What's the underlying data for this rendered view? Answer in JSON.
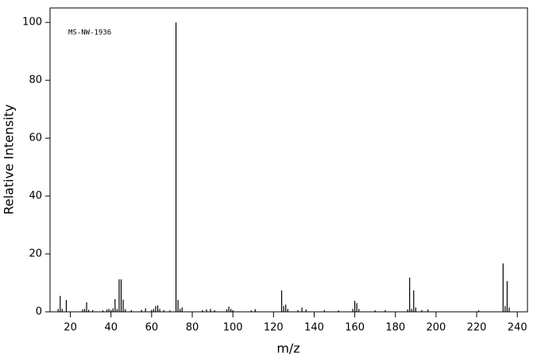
{
  "chart_data": {
    "type": "stem",
    "annotation": "MS-NW-1936",
    "x_label": "m/z",
    "y_label": "Relative Intensity",
    "color": "#000000",
    "x": [
      14,
      15,
      16,
      18,
      26,
      27,
      28,
      29,
      31,
      36,
      38,
      39,
      40,
      41,
      42,
      43,
      44,
      45,
      46,
      47,
      50,
      55,
      57,
      60,
      61,
      62,
      63,
      64,
      66,
      69,
      72,
      73,
      74,
      75,
      85,
      87,
      89,
      91,
      97,
      98,
      99,
      100,
      109,
      111,
      124,
      125,
      126,
      127,
      132,
      134,
      136,
      145,
      152,
      159,
      160,
      161,
      162,
      170,
      175,
      186,
      187,
      188,
      189,
      190,
      193,
      196,
      221,
      233,
      234,
      235,
      236
    ],
    "values": [
      1.0,
      5.5,
      1.0,
      4.1,
      0.8,
      1.0,
      3.3,
      0.7,
      0.6,
      0.5,
      0.8,
      1.0,
      0.6,
      1.2,
      4.4,
      1.0,
      11.2,
      11.2,
      4.2,
      0.9,
      0.6,
      0.7,
      1.2,
      0.7,
      1.0,
      2.0,
      2.2,
      1.0,
      0.6,
      0.5,
      100,
      4.1,
      1.0,
      1.5,
      0.6,
      0.8,
      1.0,
      0.6,
      0.9,
      1.8,
      1.0,
      0.6,
      0.5,
      0.9,
      7.4,
      2.0,
      2.5,
      1.0,
      0.6,
      1.5,
      0.8,
      0.6,
      0.5,
      1.0,
      3.8,
      3.0,
      1.0,
      0.5,
      0.6,
      0.8,
      11.8,
      1.0,
      7.4,
      1.5,
      0.6,
      0.8,
      0.5,
      16.7,
      2.0,
      10.6,
      1.5
    ],
    "xlim": [
      10,
      245
    ],
    "ylim": [
      0,
      105
    ],
    "xticks": [
      20,
      40,
      60,
      80,
      100,
      120,
      140,
      160,
      180,
      200,
      220,
      240
    ],
    "yticks": [
      0,
      20,
      40,
      60,
      80,
      100
    ]
  }
}
